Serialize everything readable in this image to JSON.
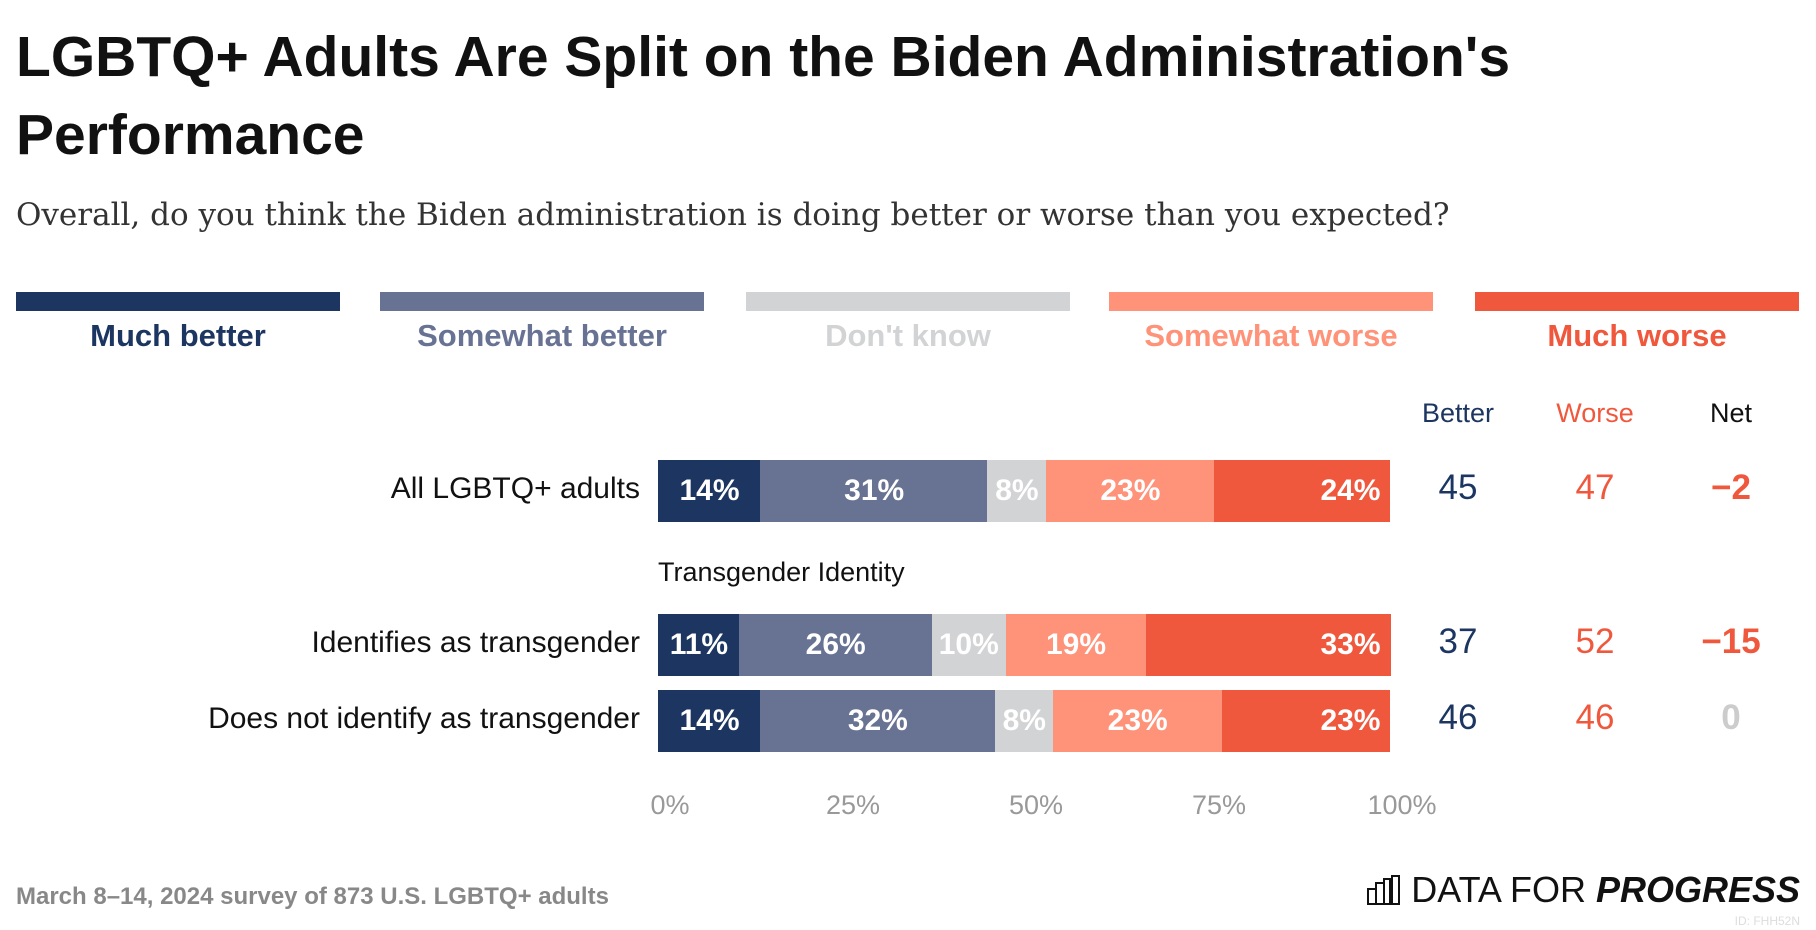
{
  "chart_data": {
    "type": "bar",
    "orientation": "horizontal-stacked",
    "title": "LGBTQ+ Adults Are Split on the Biden Administration's Performance",
    "subtitle": "Overall, do you think the Biden administration is doing better or worse than you expected?",
    "legend_placement": "top",
    "series": [
      {
        "name": "Much better",
        "color": "#1c3661"
      },
      {
        "name": "Somewhat better",
        "color": "#687394"
      },
      {
        "name": "Don't know",
        "color": "#d2d3d5"
      },
      {
        "name": "Somewhat worse",
        "color": "#ff9379"
      },
      {
        "name": "Much worse",
        "color": "#f0583d"
      }
    ],
    "column_headers": {
      "better": "Better",
      "worse": "Worse",
      "net": "Net"
    },
    "group_label": "Transgender Identity",
    "rows": [
      {
        "label": "All LGBTQ+ adults",
        "values": [
          14,
          31,
          8,
          23,
          24
        ],
        "labels": [
          "14%",
          "31%",
          "8%",
          "23%",
          "24%"
        ],
        "better": "45",
        "worse": "47",
        "net": "−2",
        "net_color": "#f0583d"
      },
      {
        "label": "Identifies as transgender",
        "values": [
          11,
          26,
          10,
          19,
          33
        ],
        "labels": [
          "11%",
          "26%",
          "10%",
          "19%",
          "33%"
        ],
        "better": "37",
        "worse": "52",
        "net": "−15",
        "net_color": "#f0583d"
      },
      {
        "label": "Does not identify as transgender",
        "values": [
          14,
          32,
          8,
          23,
          23
        ],
        "labels": [
          "14%",
          "32%",
          "8%",
          "23%",
          "23%"
        ],
        "better": "46",
        "worse": "46",
        "net": "0",
        "net_color": "#cccccc"
      }
    ],
    "xlim": [
      0,
      100
    ],
    "xticks": [
      "0%",
      "25%",
      "50%",
      "75%",
      "100%"
    ],
    "grid": false
  },
  "footer": "March 8–14, 2024 survey of 873 U.S. LGBTQ+ adults",
  "logo": {
    "text1": "DATA FOR",
    "text2": "PROGRESS",
    "id": "ID: FHH52N"
  }
}
